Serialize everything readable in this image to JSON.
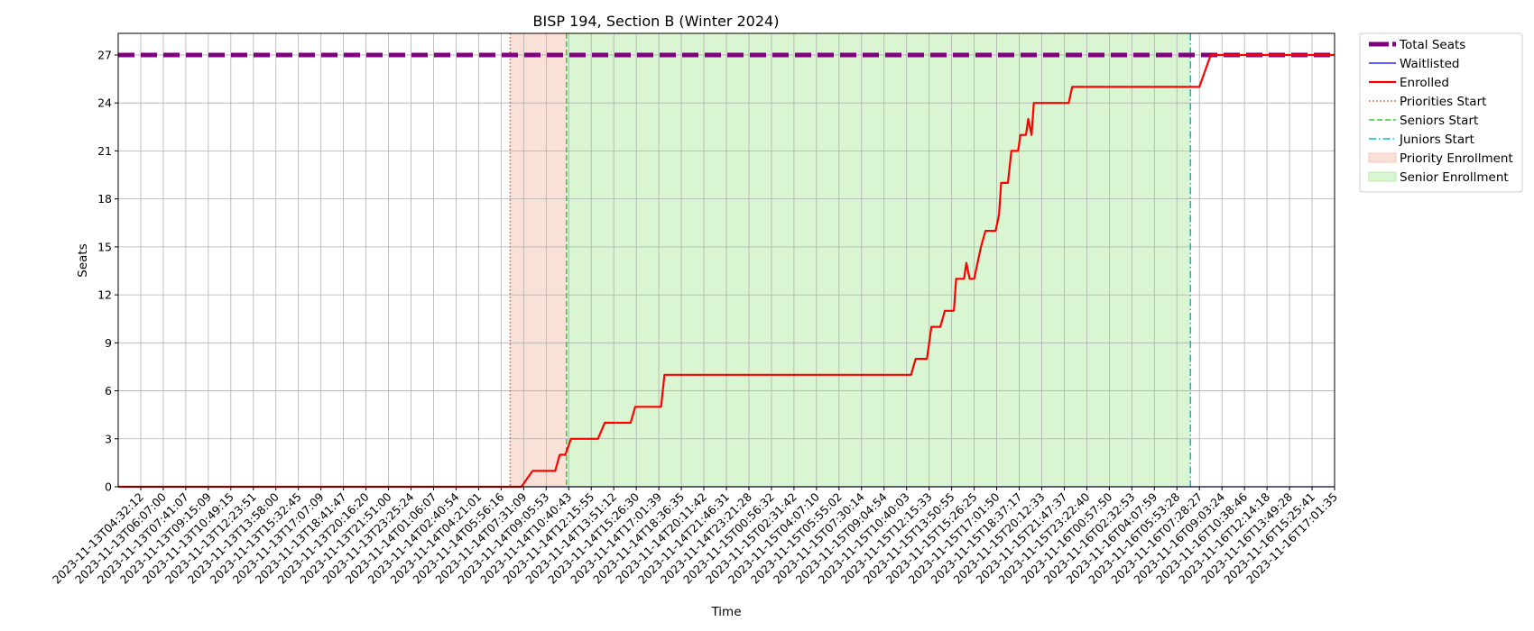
{
  "chart_data": {
    "type": "line",
    "title": "BISP 194, Section B (Winter 2024)",
    "xlabel": "Time",
    "ylabel": "Seats",
    "ylim": [
      0,
      28.35
    ],
    "yticks": [
      0,
      3,
      6,
      9,
      12,
      15,
      18,
      21,
      24,
      27
    ],
    "grid": true,
    "legend_position": "outside-upper-right",
    "x_tick_labels": [
      "2023-11-13T04:32:12",
      "2023-11-13T06:07:00",
      "2023-11-13T07:41:07",
      "2023-11-13T09:15:09",
      "2023-11-13T10:49:15",
      "2023-11-13T12:23:51",
      "2023-11-13T13:58:00",
      "2023-11-13T15:32:45",
      "2023-11-13T17:07:09",
      "2023-11-13T18:41:47",
      "2023-11-13T20:16:20",
      "2023-11-13T21:51:00",
      "2023-11-13T23:25:24",
      "2023-11-14T01:06:07",
      "2023-11-14T02:40:54",
      "2023-11-14T04:21:01",
      "2023-11-14T05:56:16",
      "2023-11-14T07:31:09",
      "2023-11-14T09:05:53",
      "2023-11-14T10:40:43",
      "2023-11-14T12:15:55",
      "2023-11-14T13:51:12",
      "2023-11-14T15:26:30",
      "2023-11-14T17:01:39",
      "2023-11-14T18:36:35",
      "2023-11-14T20:11:42",
      "2023-11-14T21:46:31",
      "2023-11-14T23:21:28",
      "2023-11-15T00:56:32",
      "2023-11-15T02:31:42",
      "2023-11-15T04:07:10",
      "2023-11-15T05:55:02",
      "2023-11-15T07:30:14",
      "2023-11-15T09:04:54",
      "2023-11-15T10:40:03",
      "2023-11-15T12:15:33",
      "2023-11-15T13:50:55",
      "2023-11-15T15:26:25",
      "2023-11-15T17:01:50",
      "2023-11-15T18:37:17",
      "2023-11-15T20:12:33",
      "2023-11-15T21:47:37",
      "2023-11-15T23:22:40",
      "2023-11-16T00:57:50",
      "2023-11-16T02:32:53",
      "2023-11-16T04:07:59",
      "2023-11-16T05:53:28",
      "2023-11-16T07:28:27",
      "2023-11-16T09:03:24",
      "2023-11-16T10:38:46",
      "2023-11-16T12:14:18",
      "2023-11-16T13:49:28",
      "2023-11-16T15:25:41",
      "2023-11-16T17:01:35"
    ],
    "x_range": [
      0,
      54
    ],
    "series": [
      {
        "name": "Total Seats",
        "color": "#800080",
        "style": "dashed-thick",
        "points": [
          [
            0,
            27
          ],
          [
            54,
            27
          ]
        ]
      },
      {
        "name": "Waitlisted",
        "color": "#0000ff",
        "style": "solid-thin",
        "points": [
          [
            0,
            0
          ],
          [
            54,
            0
          ]
        ]
      },
      {
        "name": "Enrolled",
        "color": "#ff0000",
        "style": "solid",
        "points": [
          [
            0,
            0
          ],
          [
            17.9,
            0
          ],
          [
            18.4,
            1
          ],
          [
            19.4,
            1
          ],
          [
            19.6,
            2
          ],
          [
            19.85,
            2
          ],
          [
            20.1,
            3
          ],
          [
            21.3,
            3
          ],
          [
            21.6,
            4
          ],
          [
            22.75,
            4
          ],
          [
            22.95,
            5
          ],
          [
            24.1,
            5
          ],
          [
            24.25,
            7
          ],
          [
            35.2,
            7
          ],
          [
            35.4,
            8
          ],
          [
            35.9,
            8
          ],
          [
            36.1,
            10
          ],
          [
            36.5,
            10
          ],
          [
            36.7,
            11
          ],
          [
            37.1,
            11
          ],
          [
            37.2,
            13
          ],
          [
            37.55,
            13
          ],
          [
            37.65,
            14
          ],
          [
            37.8,
            13
          ],
          [
            38.0,
            13
          ],
          [
            38.3,
            15
          ],
          [
            38.5,
            16
          ],
          [
            38.95,
            16
          ],
          [
            39.1,
            17
          ],
          [
            39.2,
            19
          ],
          [
            39.5,
            19
          ],
          [
            39.65,
            21
          ],
          [
            39.95,
            21
          ],
          [
            40.05,
            22
          ],
          [
            40.3,
            22
          ],
          [
            40.4,
            23
          ],
          [
            40.55,
            22
          ],
          [
            40.65,
            24
          ],
          [
            42.2,
            24
          ],
          [
            42.35,
            25
          ],
          [
            48.0,
            25
          ],
          [
            48.5,
            27
          ],
          [
            54,
            27
          ]
        ]
      }
    ],
    "vertical_lines": [
      {
        "name": "Priorities Start",
        "x": 17.4,
        "color": "#ff4500",
        "style": "dotted"
      },
      {
        "name": "Seniors Start",
        "x": 19.9,
        "color": "#32cd32",
        "style": "dashed"
      },
      {
        "name": "Juniors Start",
        "x": 47.6,
        "color": "#00bfc4",
        "style": "dash-dot"
      }
    ],
    "shaded_regions": [
      {
        "name": "Priority Enrollment",
        "x_start": 17.4,
        "x_end": 19.9,
        "color": "#f9e1d8"
      },
      {
        "name": "Senior Enrollment",
        "x_start": 19.9,
        "x_end": 47.6,
        "color": "#d9f5d2"
      }
    ]
  }
}
